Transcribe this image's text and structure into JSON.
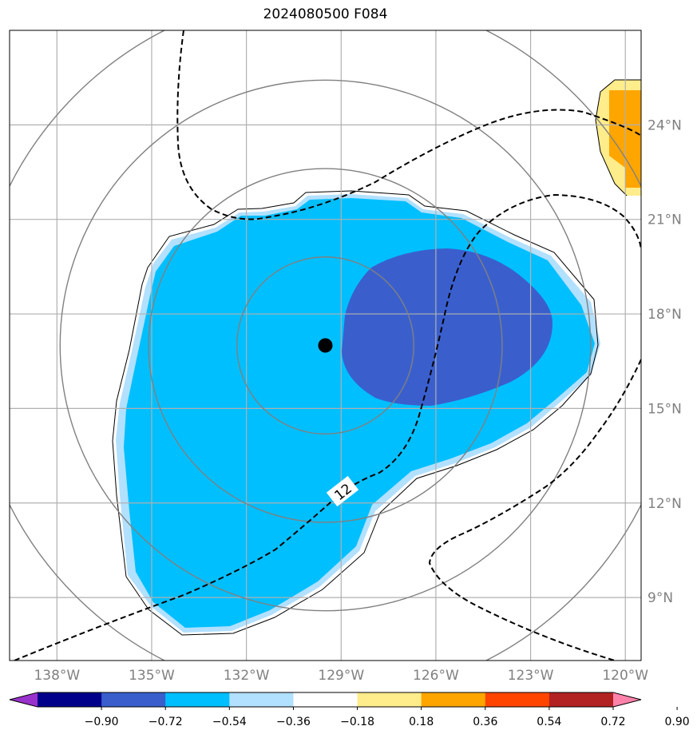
{
  "title": "2024080500 F084",
  "map": {
    "lon_range": [
      -139.5,
      -119.5
    ],
    "lat_range": [
      7,
      27
    ],
    "x_ticks": [
      {
        "lon": -138,
        "label": "138°W"
      },
      {
        "lon": -135,
        "label": "135°W"
      },
      {
        "lon": -132,
        "label": "132°W"
      },
      {
        "lon": -129,
        "label": "129°W"
      },
      {
        "lon": -126,
        "label": "126°W"
      },
      {
        "lon": -123,
        "label": "123°W"
      },
      {
        "lon": -120,
        "label": "120°W"
      }
    ],
    "y_ticks": [
      {
        "lat": 9,
        "label": "9°N"
      },
      {
        "lat": 12,
        "label": "12°N"
      },
      {
        "lat": 15,
        "label": "15°N"
      },
      {
        "lat": 18,
        "label": "18°N"
      },
      {
        "lat": 21,
        "label": "21°N"
      },
      {
        "lat": 24,
        "label": "24°N"
      }
    ],
    "grid": true,
    "storm_center": {
      "lon": -129.5,
      "lat": 17.0
    },
    "range_rings_deg": [
      2.8,
      5.6,
      8.4,
      11.2
    ],
    "contour_label": "12",
    "colors": {
      "grid": "#b0b0b0",
      "rings": "#808080",
      "field_lt_minus054": "#3a5fcd",
      "field_lt_minus036": "#00bfff",
      "field_lt_minus018": "#b2e0ff",
      "field_018_036": "#ffec8b",
      "field_036_054": "#ffa500"
    }
  },
  "colorbar": {
    "colors": [
      "#9932cc",
      "#00008b",
      "#3a5fcd",
      "#00bfff",
      "#b2e0ff",
      "#ffffff",
      "#ffec8b",
      "#ffa500",
      "#ff4500",
      "#b22222",
      "#ff82ab"
    ],
    "labels": [
      "−0.90",
      "−0.72",
      "−0.54",
      "−0.36",
      "−0.18",
      "0.18",
      "0.36",
      "0.54",
      "0.72",
      "0.90"
    ]
  }
}
